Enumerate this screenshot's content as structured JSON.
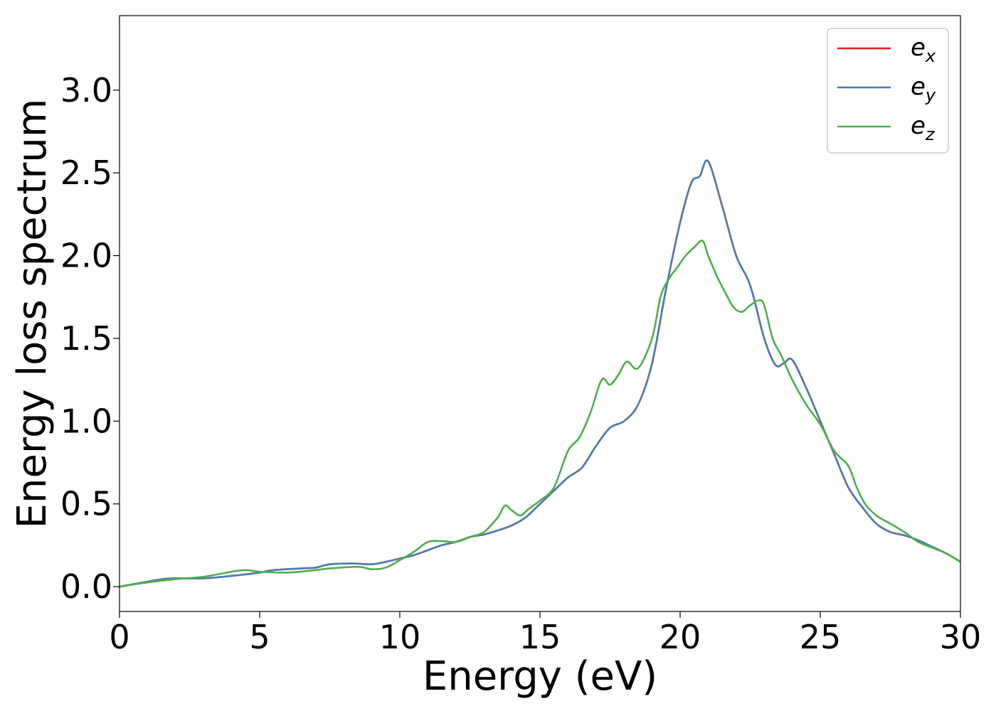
{
  "chart_data": {
    "type": "line",
    "xlabel": "Energy (eV)",
    "ylabel": "Energy loss spectrum",
    "xlim": [
      0,
      30
    ],
    "ylim": [
      -0.15,
      3.45
    ],
    "x_ticks": [
      "0",
      "5",
      "10",
      "15",
      "20",
      "25",
      "30"
    ],
    "y_ticks": [
      "0.0",
      "0.5",
      "1.0",
      "1.5",
      "2.0",
      "2.5",
      "3.0"
    ],
    "grid": false,
    "legend_position": "top-right",
    "series": [
      {
        "name": "e",
        "subscript": "x",
        "color": "#e41a1c",
        "points": [
          [
            0,
            0.0
          ],
          [
            0.5,
            0.015
          ],
          [
            1.0,
            0.03
          ],
          [
            1.5,
            0.045
          ],
          [
            2.0,
            0.05
          ],
          [
            3.0,
            0.05
          ],
          [
            4.0,
            0.065
          ],
          [
            5.0,
            0.085
          ],
          [
            5.5,
            0.1
          ],
          [
            6.5,
            0.11
          ],
          [
            7.0,
            0.115
          ],
          [
            7.5,
            0.135
          ],
          [
            8.3,
            0.14
          ],
          [
            9.0,
            0.135
          ],
          [
            9.5,
            0.15
          ],
          [
            10.0,
            0.17
          ],
          [
            10.5,
            0.19
          ],
          [
            11.0,
            0.22
          ],
          [
            11.5,
            0.25
          ],
          [
            12.0,
            0.27
          ],
          [
            12.5,
            0.3
          ],
          [
            13.0,
            0.315
          ],
          [
            13.5,
            0.34
          ],
          [
            14.0,
            0.37
          ],
          [
            14.5,
            0.42
          ],
          [
            15.0,
            0.5
          ],
          [
            15.5,
            0.58
          ],
          [
            16.0,
            0.66
          ],
          [
            16.5,
            0.72
          ],
          [
            17.0,
            0.85
          ],
          [
            17.5,
            0.96
          ],
          [
            18.0,
            1.0
          ],
          [
            18.5,
            1.1
          ],
          [
            19.0,
            1.35
          ],
          [
            19.5,
            1.8
          ],
          [
            20.0,
            2.2
          ],
          [
            20.4,
            2.44
          ],
          [
            20.7,
            2.48
          ],
          [
            21.0,
            2.57
          ],
          [
            21.5,
            2.3
          ],
          [
            22.0,
            2.0
          ],
          [
            22.5,
            1.82
          ],
          [
            23.0,
            1.5
          ],
          [
            23.4,
            1.34
          ],
          [
            23.7,
            1.35
          ],
          [
            24.0,
            1.37
          ],
          [
            24.5,
            1.2
          ],
          [
            25.0,
            1.0
          ],
          [
            25.5,
            0.8
          ],
          [
            26.0,
            0.6
          ],
          [
            26.5,
            0.48
          ],
          [
            27.0,
            0.38
          ],
          [
            27.5,
            0.33
          ],
          [
            28.0,
            0.31
          ],
          [
            28.5,
            0.28
          ],
          [
            29.0,
            0.24
          ],
          [
            29.5,
            0.2
          ],
          [
            30.0,
            0.15
          ]
        ]
      },
      {
        "name": "e",
        "subscript": "y",
        "color": "#4a7eb4",
        "points": [
          [
            0,
            0.0
          ],
          [
            0.5,
            0.015
          ],
          [
            1.0,
            0.03
          ],
          [
            1.5,
            0.045
          ],
          [
            2.0,
            0.05
          ],
          [
            3.0,
            0.05
          ],
          [
            4.0,
            0.065
          ],
          [
            5.0,
            0.085
          ],
          [
            5.5,
            0.1
          ],
          [
            6.5,
            0.11
          ],
          [
            7.0,
            0.115
          ],
          [
            7.5,
            0.135
          ],
          [
            8.3,
            0.14
          ],
          [
            9.0,
            0.135
          ],
          [
            9.5,
            0.15
          ],
          [
            10.0,
            0.17
          ],
          [
            10.5,
            0.19
          ],
          [
            11.0,
            0.22
          ],
          [
            11.5,
            0.25
          ],
          [
            12.0,
            0.27
          ],
          [
            12.5,
            0.3
          ],
          [
            13.0,
            0.315
          ],
          [
            13.5,
            0.34
          ],
          [
            14.0,
            0.37
          ],
          [
            14.5,
            0.42
          ],
          [
            15.0,
            0.5
          ],
          [
            15.5,
            0.58
          ],
          [
            16.0,
            0.66
          ],
          [
            16.5,
            0.72
          ],
          [
            17.0,
            0.85
          ],
          [
            17.5,
            0.96
          ],
          [
            18.0,
            1.0
          ],
          [
            18.5,
            1.1
          ],
          [
            19.0,
            1.35
          ],
          [
            19.5,
            1.8
          ],
          [
            20.0,
            2.2
          ],
          [
            20.4,
            2.44
          ],
          [
            20.7,
            2.48
          ],
          [
            21.0,
            2.57
          ],
          [
            21.5,
            2.3
          ],
          [
            22.0,
            2.0
          ],
          [
            22.5,
            1.82
          ],
          [
            23.0,
            1.5
          ],
          [
            23.4,
            1.34
          ],
          [
            23.7,
            1.35
          ],
          [
            24.0,
            1.37
          ],
          [
            24.5,
            1.2
          ],
          [
            25.0,
            1.0
          ],
          [
            25.5,
            0.8
          ],
          [
            26.0,
            0.6
          ],
          [
            26.5,
            0.48
          ],
          [
            27.0,
            0.38
          ],
          [
            27.5,
            0.33
          ],
          [
            28.0,
            0.31
          ],
          [
            28.5,
            0.28
          ],
          [
            29.0,
            0.24
          ],
          [
            29.5,
            0.2
          ],
          [
            30.0,
            0.15
          ]
        ]
      },
      {
        "name": "e",
        "subscript": "z",
        "color": "#4daf4a",
        "points": [
          [
            0,
            0.0
          ],
          [
            1.0,
            0.025
          ],
          [
            2.0,
            0.045
          ],
          [
            3.0,
            0.06
          ],
          [
            4.0,
            0.09
          ],
          [
            4.5,
            0.1
          ],
          [
            5.0,
            0.09
          ],
          [
            6.0,
            0.085
          ],
          [
            7.0,
            0.1
          ],
          [
            7.5,
            0.11
          ],
          [
            8.5,
            0.12
          ],
          [
            9.0,
            0.105
          ],
          [
            9.5,
            0.115
          ],
          [
            10.0,
            0.16
          ],
          [
            10.5,
            0.21
          ],
          [
            11.0,
            0.27
          ],
          [
            11.5,
            0.275
          ],
          [
            12.0,
            0.27
          ],
          [
            12.5,
            0.3
          ],
          [
            13.0,
            0.33
          ],
          [
            13.5,
            0.42
          ],
          [
            13.75,
            0.49
          ],
          [
            14.0,
            0.46
          ],
          [
            14.3,
            0.43
          ],
          [
            14.6,
            0.47
          ],
          [
            15.0,
            0.52
          ],
          [
            15.5,
            0.6
          ],
          [
            16.0,
            0.82
          ],
          [
            16.4,
            0.9
          ],
          [
            16.8,
            1.05
          ],
          [
            17.2,
            1.25
          ],
          [
            17.5,
            1.22
          ],
          [
            17.8,
            1.28
          ],
          [
            18.1,
            1.36
          ],
          [
            18.5,
            1.32
          ],
          [
            19.0,
            1.5
          ],
          [
            19.3,
            1.75
          ],
          [
            19.6,
            1.86
          ],
          [
            19.9,
            1.93
          ],
          [
            20.2,
            2.0
          ],
          [
            20.5,
            2.05
          ],
          [
            20.8,
            2.09
          ],
          [
            21.0,
            2.0
          ],
          [
            21.3,
            1.88
          ],
          [
            21.6,
            1.78
          ],
          [
            21.9,
            1.69
          ],
          [
            22.2,
            1.66
          ],
          [
            22.5,
            1.7
          ],
          [
            22.8,
            1.73
          ],
          [
            23.0,
            1.7
          ],
          [
            23.3,
            1.5
          ],
          [
            23.6,
            1.4
          ],
          [
            24.0,
            1.25
          ],
          [
            24.5,
            1.1
          ],
          [
            25.0,
            0.98
          ],
          [
            25.5,
            0.82
          ],
          [
            26.0,
            0.73
          ],
          [
            26.3,
            0.6
          ],
          [
            26.6,
            0.5
          ],
          [
            27.0,
            0.43
          ],
          [
            27.5,
            0.38
          ],
          [
            28.0,
            0.33
          ],
          [
            28.5,
            0.27
          ],
          [
            29.0,
            0.235
          ],
          [
            29.5,
            0.2
          ],
          [
            30.0,
            0.15
          ]
        ]
      }
    ]
  }
}
